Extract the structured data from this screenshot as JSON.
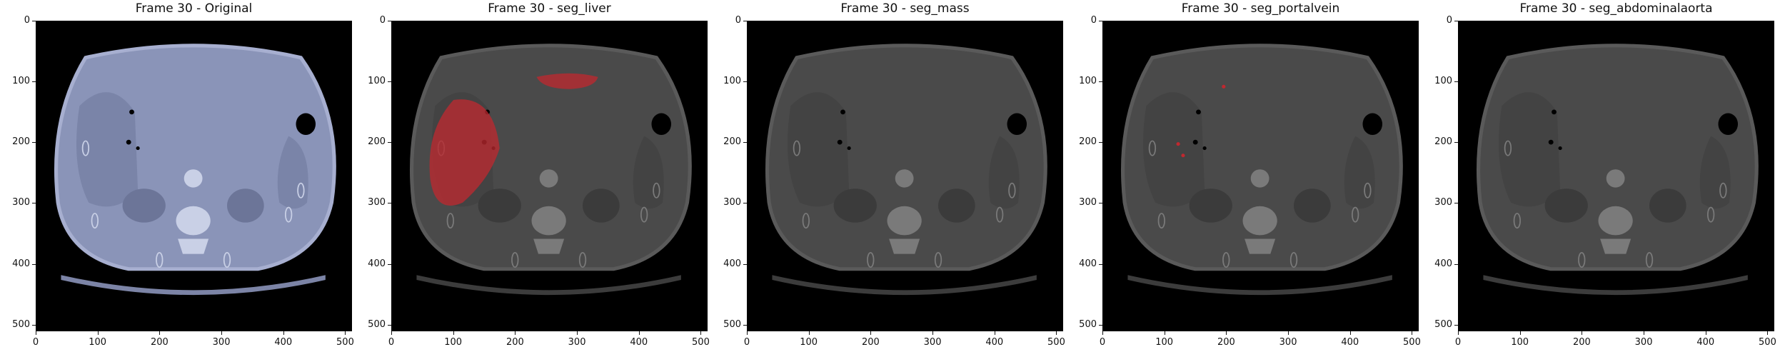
{
  "panels": [
    {
      "title": "Frame 30 - Original",
      "mode": "original",
      "overlay": "none"
    },
    {
      "title": "Frame 30 - seg_liver",
      "mode": "dim",
      "overlay": "liver"
    },
    {
      "title": "Frame 30 - seg_mass",
      "mode": "dim",
      "overlay": "none"
    },
    {
      "title": "Frame 30 - seg_portalvein",
      "mode": "dim",
      "overlay": "portalvein"
    },
    {
      "title": "Frame 30 - seg_abdominalaorta",
      "mode": "dim",
      "overlay": "none"
    }
  ],
  "axes": {
    "x_ticks": [
      "0",
      "100",
      "200",
      "300",
      "400",
      "500"
    ],
    "y_ticks": [
      "0",
      "100",
      "200",
      "300",
      "400",
      "500"
    ],
    "range": [
      0,
      511
    ]
  },
  "colors": {
    "original_tint": "#8a94b8",
    "dim_tint": "#4a4a4a",
    "overlay": "#c0282f"
  }
}
